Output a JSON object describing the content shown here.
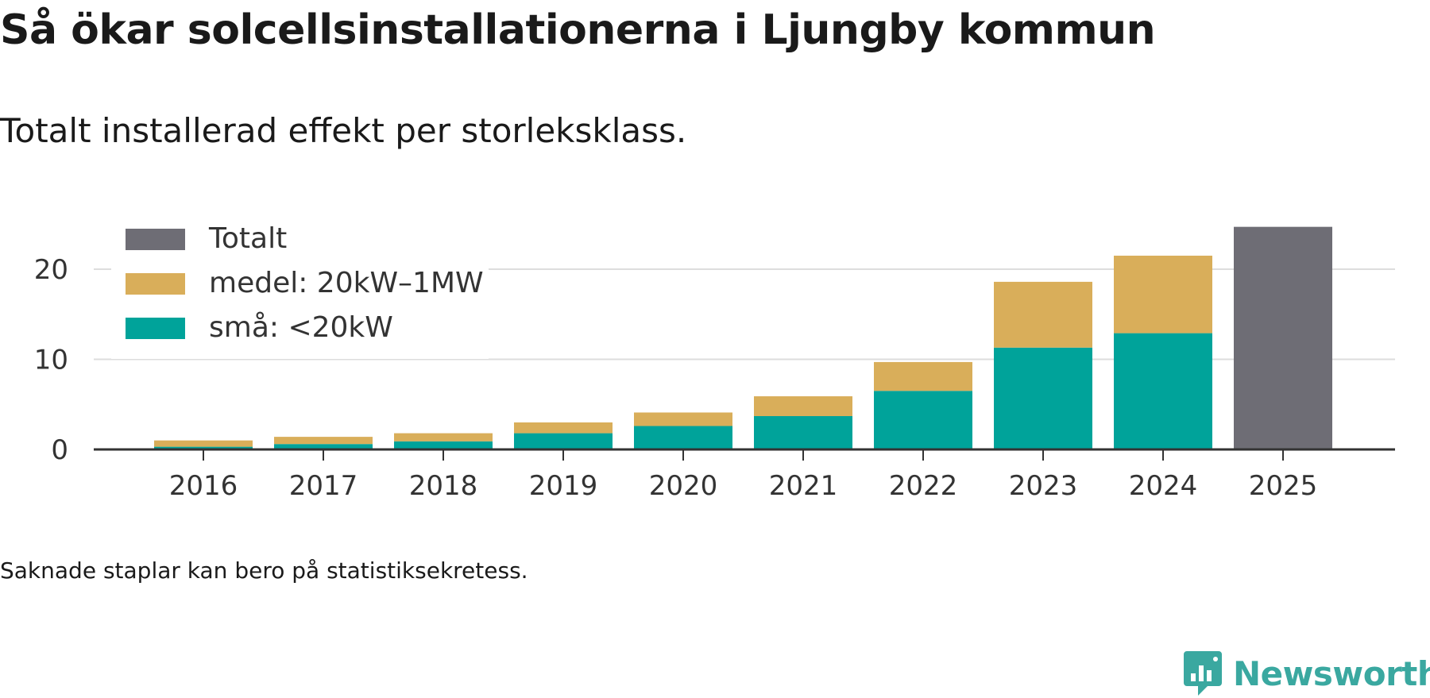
{
  "title": "Så ökar solcellsinstallationerna i Ljungby kommun",
  "subtitle": "Totalt installerad effekt per storleksklass.",
  "note": "Saknade staplar kan bero på statistiksekretess.",
  "brand": "Newsworthy",
  "chart_data": {
    "type": "bar",
    "stacked": true,
    "categories": [
      "2016",
      "2017",
      "2018",
      "2019",
      "2020",
      "2021",
      "2022",
      "2023",
      "2024",
      "2025"
    ],
    "series": [
      {
        "name": "små: <20kW",
        "color": "#00a39a",
        "values": [
          0.3,
          0.6,
          0.9,
          1.8,
          2.6,
          3.7,
          6.5,
          11.3,
          12.9,
          null
        ]
      },
      {
        "name": "medel: 20kW–1MW",
        "color": "#d9ae5a",
        "values": [
          0.7,
          0.8,
          0.9,
          1.2,
          1.5,
          2.2,
          3.2,
          7.3,
          8.6,
          null
        ]
      },
      {
        "name": "Totalt",
        "color": "#6e6d75",
        "values": [
          null,
          null,
          null,
          null,
          null,
          null,
          null,
          null,
          null,
          24.7
        ]
      }
    ],
    "legend": [
      "Totalt",
      "medel: 20kW–1MW",
      "små: <20kW"
    ],
    "legend_position": "top-left",
    "ylim": [
      0,
      25
    ],
    "yticks": [
      0,
      10,
      20
    ],
    "grid": true,
    "xlabel": "",
    "ylabel": ""
  }
}
